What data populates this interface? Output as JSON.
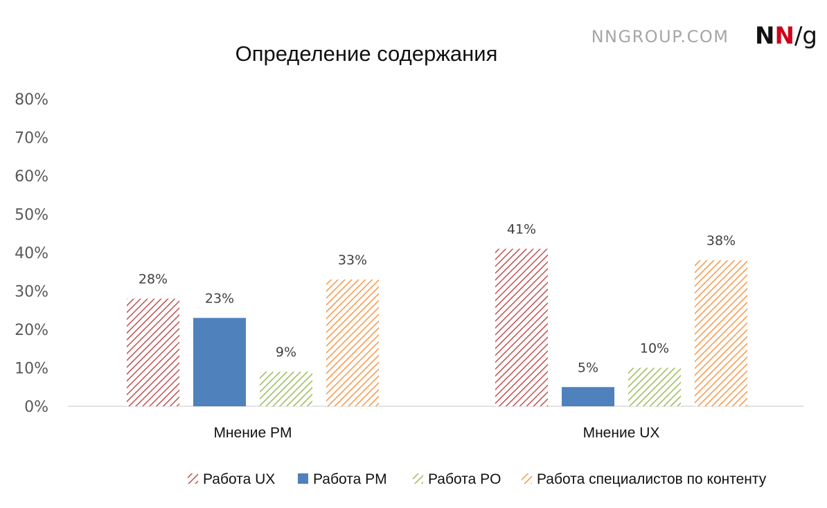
{
  "brand": {
    "url": "NNGROUP.COM",
    "logo_part1": "NN",
    "logo_part2": "/g"
  },
  "colors": {
    "ux": "#c0504d",
    "pm": "#4f81bd",
    "po": "#9bbb59",
    "content": "#f79646",
    "axis": "#d9d9d9",
    "logo_red": "#d0021b",
    "logo_dark": "#111111"
  },
  "chart_data": {
    "type": "bar",
    "title": "Определение содержания",
    "xlabel": "",
    "ylabel": "",
    "ylim": [
      0,
      80
    ],
    "yticks": [
      "0%",
      "10%",
      "20%",
      "30%",
      "40%",
      "50%",
      "60%",
      "70%",
      "80%"
    ],
    "grid": false,
    "legend_position": "bottom-right",
    "categories": [
      "Мнение PM",
      "Мнение UX"
    ],
    "series": [
      {
        "name": "Работа UX",
        "values": [
          28,
          41
        ],
        "labels": [
          "28%",
          "41%"
        ],
        "pattern": "hatched"
      },
      {
        "name": "Работа PM",
        "values": [
          23,
          5
        ],
        "labels": [
          "23%",
          "5%"
        ],
        "pattern": "solid"
      },
      {
        "name": "Работа PO",
        "values": [
          9,
          10
        ],
        "labels": [
          "9%",
          "10%"
        ],
        "pattern": "hatched"
      },
      {
        "name": "Работа специалистов по контенту",
        "values": [
          33,
          38
        ],
        "labels": [
          "33%",
          "38%"
        ],
        "pattern": "hatched"
      }
    ]
  }
}
